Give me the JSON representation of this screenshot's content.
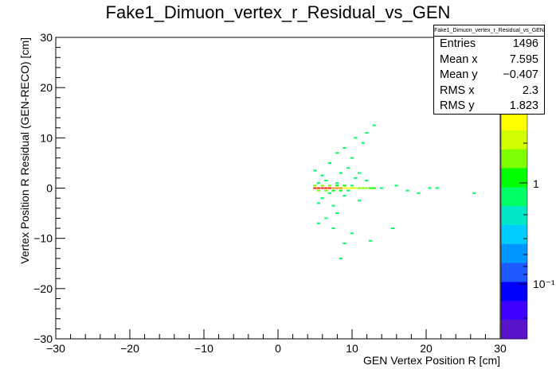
{
  "chart_data": {
    "type": "heatmap",
    "title": "Fake1_Dimuon_vertex_r_Residual_vs_GEN",
    "xlabel": "GEN Vertex Position R [cm]",
    "ylabel": "Vertex Position R Residual (GEN-RECO) [cm]",
    "xlim": [
      -30,
      30
    ],
    "ylim": [
      -30,
      30
    ],
    "x_ticks": [
      "−30",
      "−20",
      "−10",
      "0",
      "10",
      "20",
      "30"
    ],
    "y_ticks": [
      "−30",
      "−20",
      "−10",
      "0",
      "10",
      "20",
      "30"
    ],
    "z_scale": "log",
    "z_tick_labels": [
      "1",
      "10⁻¹"
    ],
    "colormap": [
      "#5a14c8",
      "#3f00ff",
      "#0000ff",
      "#1e5aff",
      "#0096ff",
      "#00ccff",
      "#00e6c8",
      "#00ff64",
      "#00ff00",
      "#7cff00",
      "#d2ff00",
      "#ffff00"
    ],
    "grid": false,
    "bins": [
      [
        5.0,
        0.0,
        80
      ],
      [
        5.5,
        0.0,
        70
      ],
      [
        6.0,
        0.0,
        60
      ],
      [
        6.5,
        0.0,
        52
      ],
      [
        7.0,
        0.0,
        44
      ],
      [
        7.5,
        0.0,
        36
      ],
      [
        8.0,
        0.0,
        28
      ],
      [
        8.5,
        0.0,
        22
      ],
      [
        9.0,
        0.0,
        16
      ],
      [
        9.5,
        0.0,
        12
      ],
      [
        10.0,
        0.0,
        9
      ],
      [
        10.5,
        0.0,
        7
      ],
      [
        11.0,
        0.0,
        5
      ],
      [
        11.5,
        0.0,
        4
      ],
      [
        12.0,
        0.0,
        3
      ],
      [
        12.5,
        0.0,
        2
      ],
      [
        13.0,
        0.0,
        2
      ],
      [
        5.0,
        0.5,
        4
      ],
      [
        6.0,
        0.5,
        3
      ],
      [
        7.0,
        0.5,
        3
      ],
      [
        8.0,
        0.5,
        2
      ],
      [
        9.0,
        0.5,
        2
      ],
      [
        10.0,
        0.5,
        1
      ],
      [
        5.5,
        -0.5,
        4
      ],
      [
        6.5,
        -0.5,
        3
      ],
      [
        7.5,
        -0.5,
        2
      ],
      [
        8.5,
        -0.5,
        2
      ],
      [
        9.5,
        -0.5,
        1
      ],
      [
        5.5,
        1.0,
        1
      ],
      [
        6.5,
        1.5,
        1
      ],
      [
        8.0,
        1.0,
        1
      ],
      [
        7.0,
        -1.0,
        1
      ],
      [
        9.0,
        -1.5,
        1
      ],
      [
        6.0,
        -2.0,
        1
      ],
      [
        5.5,
        -3.0,
        1
      ],
      [
        7.5,
        -3.5,
        1
      ],
      [
        8.5,
        3.0,
        1
      ],
      [
        9.5,
        4.0,
        1
      ],
      [
        6.0,
        2.5,
        1
      ],
      [
        10.5,
        2.0,
        1
      ],
      [
        11.0,
        -2.5,
        1
      ],
      [
        5.0,
        3.5,
        1
      ],
      [
        7.0,
        5.0,
        1
      ],
      [
        8.0,
        7.0,
        1
      ],
      [
        9.0,
        8.0,
        1
      ],
      [
        10.0,
        6.0,
        1
      ],
      [
        11.5,
        9.0,
        1
      ],
      [
        12.0,
        11.0,
        1
      ],
      [
        13.0,
        12.5,
        1
      ],
      [
        10.5,
        10.0,
        1
      ],
      [
        6.5,
        -6.0,
        1
      ],
      [
        7.5,
        -8.0,
        1
      ],
      [
        8.0,
        -5.0,
        1
      ],
      [
        9.0,
        -11.0,
        1
      ],
      [
        10.0,
        -9.0,
        1
      ],
      [
        12.5,
        -10.5,
        1
      ],
      [
        8.5,
        -14.0,
        1
      ],
      [
        5.5,
        -7.0,
        1
      ],
      [
        14.0,
        0.0,
        1
      ],
      [
        16.0,
        0.5,
        1
      ],
      [
        17.5,
        -0.5,
        1
      ],
      [
        19.0,
        -1.0,
        1
      ],
      [
        20.5,
        0.0,
        1
      ],
      [
        21.5,
        0.0,
        1
      ],
      [
        26.5,
        -1.0,
        1
      ],
      [
        15.5,
        -8.0,
        1
      ],
      [
        12.0,
        1.5,
        1
      ],
      [
        11.0,
        3.0,
        1
      ]
    ]
  },
  "stats": {
    "title": "Fake1_Dimuon_vertex_r_Residual_vs_GEN",
    "rows": [
      {
        "label": "Entries",
        "value": "1496"
      },
      {
        "label": "Mean x",
        "value": "7.595"
      },
      {
        "label": "Mean y",
        "value": "−0.407"
      },
      {
        "label": "RMS x",
        "value": "2.3"
      },
      {
        "label": "RMS y",
        "value": "1.823"
      }
    ]
  }
}
